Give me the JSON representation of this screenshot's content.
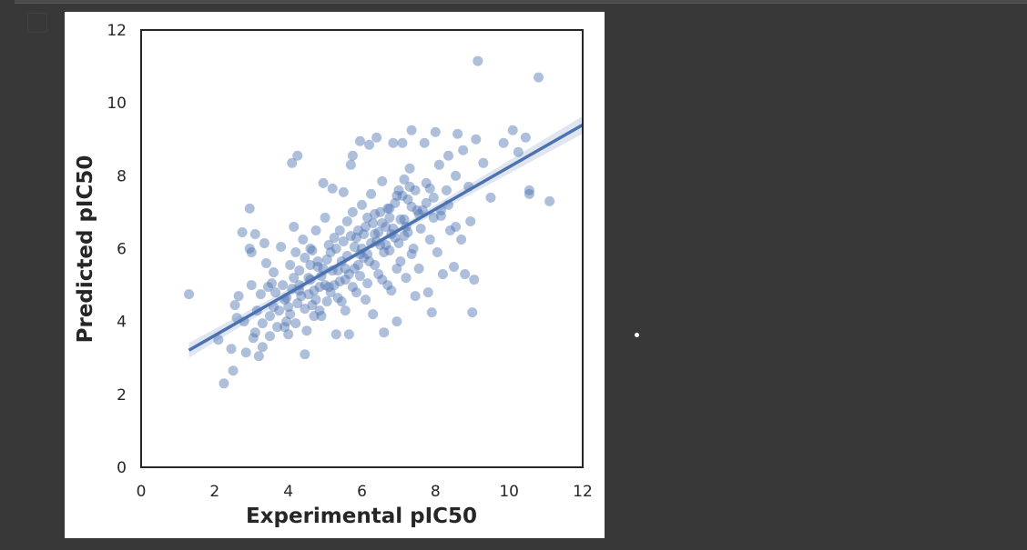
{
  "colors": {
    "background": "#383838",
    "figure_background": "#ffffff",
    "point_color": "#4c72b0",
    "line_color": "#4c72b0"
  },
  "chart_data": {
    "type": "scatter",
    "xlabel": "Experimental pIC50",
    "ylabel": "Predicted pIC50",
    "xlim": [
      0,
      12
    ],
    "ylim": [
      0,
      12
    ],
    "xticks": [
      "0",
      "2",
      "4",
      "6",
      "8",
      "10",
      "12"
    ],
    "yticks": [
      "0",
      "2",
      "4",
      "6",
      "8",
      "10",
      "12"
    ],
    "grid": false,
    "point_alpha": 0.45,
    "regression": {
      "x_range": [
        1.3,
        12
      ],
      "slope": 0.578,
      "intercept": 2.46,
      "confidence_band": true
    },
    "points": [
      [
        1.3,
        4.75
      ],
      [
        2.1,
        3.5
      ],
      [
        2.25,
        2.3
      ],
      [
        2.5,
        2.65
      ],
      [
        2.45,
        3.25
      ],
      [
        2.6,
        4.1
      ],
      [
        2.65,
        4.7
      ],
      [
        2.75,
        6.45
      ],
      [
        2.95,
        7.1
      ],
      [
        2.95,
        6.0
      ],
      [
        3.0,
        5.0
      ],
      [
        3.1,
        3.7
      ],
      [
        3.2,
        3.05
      ],
      [
        3.3,
        3.3
      ],
      [
        3.35,
        6.15
      ],
      [
        3.4,
        5.6
      ],
      [
        3.5,
        3.6
      ],
      [
        3.55,
        5.05
      ],
      [
        3.6,
        4.4
      ],
      [
        3.7,
        3.85
      ],
      [
        3.8,
        6.05
      ],
      [
        3.9,
        4.6
      ],
      [
        3.95,
        4.0
      ],
      [
        4.0,
        3.65
      ],
      [
        4.1,
        8.35
      ],
      [
        4.25,
        8.55
      ],
      [
        4.15,
        6.6
      ],
      [
        4.2,
        5.9
      ],
      [
        4.3,
        5.4
      ],
      [
        4.35,
        4.7
      ],
      [
        4.45,
        3.1
      ],
      [
        4.5,
        3.75
      ],
      [
        4.55,
        5.2
      ],
      [
        4.6,
        6.0
      ],
      [
        4.7,
        4.85
      ],
      [
        4.75,
        6.5
      ],
      [
        4.8,
        5.5
      ],
      [
        4.85,
        4.3
      ],
      [
        4.95,
        7.8
      ],
      [
        5.0,
        6.85
      ],
      [
        5.05,
        5.7
      ],
      [
        5.1,
        4.95
      ],
      [
        5.2,
        7.65
      ],
      [
        5.25,
        6.3
      ],
      [
        5.3,
        3.65
      ],
      [
        5.35,
        5.4
      ],
      [
        5.45,
        4.55
      ],
      [
        5.5,
        7.55
      ],
      [
        5.55,
        5.15
      ],
      [
        5.6,
        6.75
      ],
      [
        5.65,
        3.65
      ],
      [
        5.7,
        8.3
      ],
      [
        5.75,
        8.55
      ],
      [
        5.8,
        6.05
      ],
      [
        5.85,
        4.8
      ],
      [
        5.9,
        5.55
      ],
      [
        5.95,
        8.95
      ],
      [
        6.0,
        7.2
      ],
      [
        6.05,
        6.4
      ],
      [
        6.1,
        4.6
      ],
      [
        6.15,
        5.85
      ],
      [
        6.2,
        8.85
      ],
      [
        6.25,
        7.5
      ],
      [
        6.3,
        4.2
      ],
      [
        6.35,
        6.95
      ],
      [
        6.4,
        9.05
      ],
      [
        6.45,
        5.3
      ],
      [
        6.5,
        6.1
      ],
      [
        6.55,
        7.85
      ],
      [
        6.6,
        3.7
      ],
      [
        6.65,
        6.6
      ],
      [
        6.7,
        5.0
      ],
      [
        6.75,
        7.1
      ],
      [
        6.8,
        4.85
      ],
      [
        6.85,
        8.9
      ],
      [
        6.9,
        6.3
      ],
      [
        6.95,
        4.0
      ],
      [
        7.0,
        7.6
      ],
      [
        7.05,
        5.65
      ],
      [
        7.1,
        8.9
      ],
      [
        7.15,
        6.8
      ],
      [
        7.2,
        5.2
      ],
      [
        7.25,
        7.35
      ],
      [
        7.3,
        8.2
      ],
      [
        7.35,
        9.25
      ],
      [
        7.4,
        6.0
      ],
      [
        7.45,
        4.7
      ],
      [
        7.5,
        7.05
      ],
      [
        7.55,
        5.45
      ],
      [
        7.6,
        6.55
      ],
      [
        7.7,
        8.9
      ],
      [
        7.75,
        7.8
      ],
      [
        7.8,
        4.8
      ],
      [
        7.85,
        6.25
      ],
      [
        7.9,
        4.25
      ],
      [
        7.95,
        7.4
      ],
      [
        8.0,
        9.2
      ],
      [
        8.05,
        5.9
      ],
      [
        8.1,
        8.3
      ],
      [
        8.15,
        6.9
      ],
      [
        8.2,
        5.3
      ],
      [
        8.3,
        7.6
      ],
      [
        8.35,
        8.55
      ],
      [
        8.4,
        6.5
      ],
      [
        8.5,
        5.5
      ],
      [
        8.55,
        8.0
      ],
      [
        8.6,
        9.15
      ],
      [
        8.7,
        6.25
      ],
      [
        8.75,
        8.7
      ],
      [
        8.8,
        5.3
      ],
      [
        8.9,
        7.7
      ],
      [
        8.95,
        6.75
      ],
      [
        9.0,
        4.25
      ],
      [
        9.05,
        5.15
      ],
      [
        9.1,
        9.0
      ],
      [
        9.15,
        11.15
      ],
      [
        9.3,
        8.35
      ],
      [
        9.5,
        7.4
      ],
      [
        9.85,
        8.9
      ],
      [
        10.1,
        9.25
      ],
      [
        10.25,
        8.65
      ],
      [
        10.45,
        9.05
      ],
      [
        10.55,
        7.6
      ],
      [
        10.55,
        7.5
      ],
      [
        10.8,
        10.7
      ],
      [
        11.1,
        7.3
      ],
      [
        3.0,
        5.9
      ],
      [
        3.1,
        6.4
      ],
      [
        3.25,
        4.75
      ],
      [
        3.45,
        4.95
      ],
      [
        3.6,
        5.35
      ],
      [
        3.75,
        4.3
      ],
      [
        3.85,
        5.0
      ],
      [
        4.05,
        5.55
      ],
      [
        4.25,
        4.5
      ],
      [
        4.4,
        6.25
      ],
      [
        4.65,
        5.95
      ],
      [
        4.9,
        4.15
      ],
      [
        5.15,
        5.9
      ],
      [
        5.4,
        6.5
      ],
      [
        5.55,
        4.3
      ],
      [
        5.75,
        7.0
      ],
      [
        5.95,
        5.25
      ],
      [
        6.15,
        6.85
      ],
      [
        6.35,
        5.55
      ],
      [
        6.55,
        6.7
      ],
      [
        6.75,
        5.95
      ],
      [
        6.95,
        7.45
      ],
      [
        7.15,
        6.35
      ],
      [
        7.35,
        7.15
      ],
      [
        7.55,
        6.95
      ],
      [
        7.75,
        7.25
      ],
      [
        7.95,
        6.85
      ],
      [
        8.15,
        7.05
      ],
      [
        8.35,
        7.2
      ],
      [
        8.55,
        6.6
      ],
      [
        2.55,
        4.45
      ],
      [
        2.8,
        4.0
      ],
      [
        2.85,
        3.15
      ],
      [
        3.05,
        3.55
      ],
      [
        3.15,
        4.3
      ],
      [
        3.3,
        3.95
      ],
      [
        3.5,
        4.15
      ],
      [
        3.65,
        4.8
      ],
      [
        3.9,
        3.85
      ],
      [
        4.0,
        4.4
      ],
      [
        4.1,
        4.9
      ],
      [
        4.2,
        3.95
      ],
      [
        4.3,
        5.0
      ],
      [
        4.45,
        5.75
      ],
      [
        4.6,
        5.15
      ],
      [
        4.75,
        4.6
      ],
      [
        4.9,
        5.25
      ],
      [
        5.05,
        4.55
      ],
      [
        5.25,
        5.0
      ],
      [
        5.45,
        5.65
      ],
      [
        5.65,
        5.3
      ],
      [
        5.85,
        6.3
      ],
      [
        6.05,
        5.75
      ],
      [
        6.25,
        6.15
      ],
      [
        6.45,
        6.45
      ],
      [
        6.65,
        6.1
      ],
      [
        6.85,
        6.55
      ],
      [
        7.05,
        6.8
      ],
      [
        7.25,
        6.45
      ],
      [
        7.45,
        7.6
      ],
      [
        7.65,
        7.05
      ],
      [
        7.85,
        7.65
      ],
      [
        5.0,
        5.0
      ],
      [
        5.2,
        5.4
      ],
      [
        5.4,
        5.1
      ],
      [
        5.6,
        5.8
      ],
      [
        5.8,
        5.45
      ],
      [
        6.0,
        6.0
      ],
      [
        6.2,
        5.65
      ],
      [
        6.4,
        6.2
      ],
      [
        6.6,
        5.9
      ],
      [
        6.8,
        6.4
      ],
      [
        7.0,
        6.15
      ],
      [
        7.2,
        6.6
      ],
      [
        5.1,
        6.1
      ],
      [
        5.3,
        6.0
      ],
      [
        5.5,
        6.2
      ],
      [
        5.7,
        6.35
      ],
      [
        5.9,
        6.5
      ],
      [
        6.1,
        6.6
      ],
      [
        6.3,
        6.7
      ],
      [
        6.5,
        7.0
      ],
      [
        6.7,
        7.1
      ],
      [
        6.9,
        7.25
      ],
      [
        7.1,
        7.45
      ],
      [
        7.3,
        7.7
      ],
      [
        4.55,
        4.75
      ],
      [
        4.65,
        4.45
      ],
      [
        4.8,
        5.65
      ],
      [
        4.95,
        5.45
      ],
      [
        5.15,
        4.8
      ],
      [
        5.35,
        4.65
      ],
      [
        5.55,
        5.45
      ],
      [
        5.75,
        4.95
      ],
      [
        5.95,
        5.85
      ],
      [
        6.15,
        5.05
      ],
      [
        6.35,
        6.4
      ],
      [
        6.55,
        5.15
      ],
      [
        6.75,
        6.85
      ],
      [
        6.95,
        5.45
      ],
      [
        7.15,
        7.9
      ],
      [
        7.35,
        5.85
      ],
      [
        3.95,
        4.65
      ],
      [
        4.05,
        4.2
      ],
      [
        4.15,
        5.2
      ],
      [
        4.3,
        4.85
      ],
      [
        4.45,
        4.35
      ],
      [
        4.6,
        5.55
      ],
      [
        4.7,
        4.15
      ],
      [
        4.85,
        4.95
      ]
    ]
  }
}
